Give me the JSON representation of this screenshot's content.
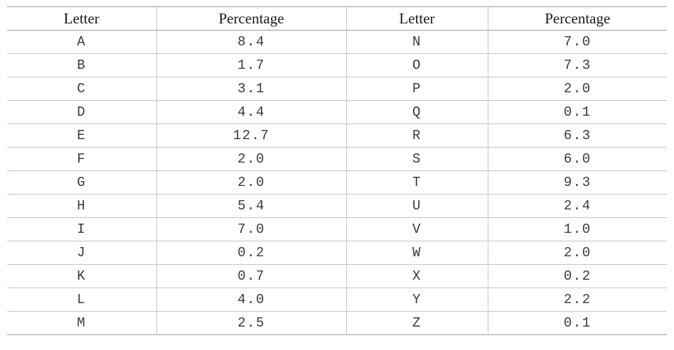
{
  "table": {
    "headers": [
      "Letter",
      "Percentage",
      "Letter",
      "Percentage"
    ],
    "rows": [
      [
        "A",
        "8.4",
        "N",
        "7.0"
      ],
      [
        "B",
        "1.7",
        "O",
        "7.3"
      ],
      [
        "C",
        "3.1",
        "P",
        "2.0"
      ],
      [
        "D",
        "4.4",
        "Q",
        "0.1"
      ],
      [
        "E",
        "12.7",
        "R",
        "6.3"
      ],
      [
        "F",
        "2.0",
        "S",
        "6.0"
      ],
      [
        "G",
        "2.0",
        "T",
        "9.3"
      ],
      [
        "H",
        "5.4",
        "U",
        "2.4"
      ],
      [
        "I",
        "7.0",
        "V",
        "1.0"
      ],
      [
        "J",
        "0.2",
        "W",
        "2.0"
      ],
      [
        "K",
        "0.7",
        "X",
        "0.2"
      ],
      [
        "L",
        "4.0",
        "Y",
        "2.2"
      ],
      [
        "M",
        "2.5",
        "Z",
        "0.1"
      ]
    ]
  }
}
